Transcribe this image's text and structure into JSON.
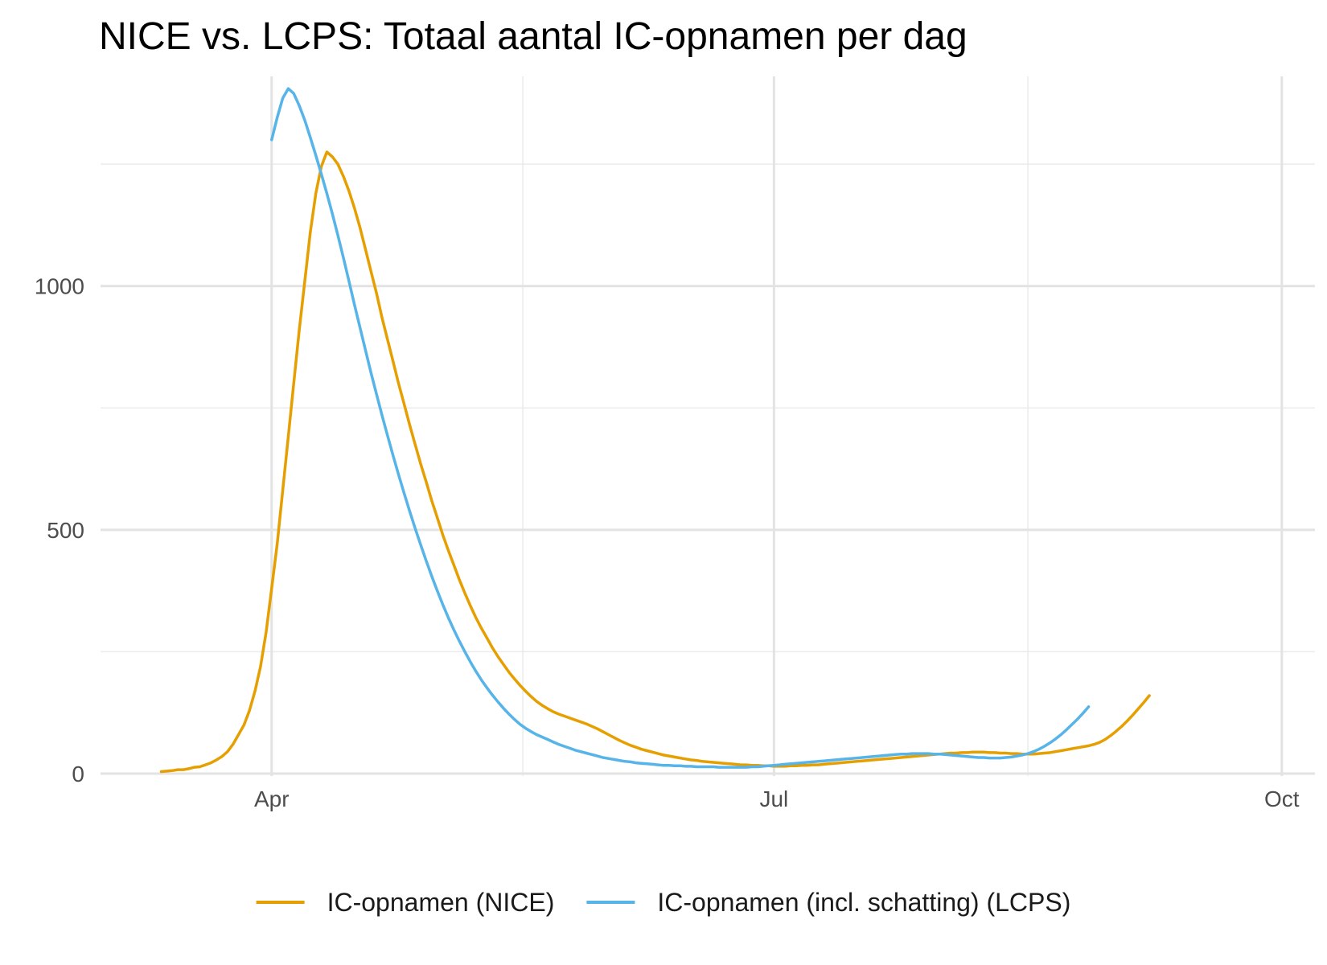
{
  "chart_data": {
    "type": "line",
    "title": "NICE vs. LCPS: Totaal aantal IC-opnamen per dag",
    "xlabel": "",
    "ylabel": "",
    "x_unit": "day of year 2020 (1 = 1 Jan)",
    "xlim": [
      61,
      281
    ],
    "ylim": [
      -5,
      1430
    ],
    "grid": true,
    "legend_position": "bottom",
    "x_ticks": [
      {
        "label": "Apr",
        "value": 92
      },
      {
        "label": "Jul",
        "value": 183
      },
      {
        "label": "Oct",
        "value": 275
      }
    ],
    "y_ticks": [
      {
        "label": "0",
        "value": 0
      },
      {
        "label": "500",
        "value": 500
      },
      {
        "label": "1000",
        "value": 1000
      }
    ],
    "series": [
      {
        "name": "IC-opnamen (NICE)",
        "color": "#E69F00",
        "points": [
          [
            72,
            4
          ],
          [
            73,
            5
          ],
          [
            74,
            6
          ],
          [
            75,
            8
          ],
          [
            76,
            8
          ],
          [
            77,
            10
          ],
          [
            78,
            13
          ],
          [
            79,
            14
          ],
          [
            80,
            18
          ],
          [
            81,
            22
          ],
          [
            82,
            28
          ],
          [
            83,
            35
          ],
          [
            84,
            45
          ],
          [
            85,
            60
          ],
          [
            86,
            80
          ],
          [
            87,
            100
          ],
          [
            88,
            130
          ],
          [
            89,
            170
          ],
          [
            90,
            220
          ],
          [
            91,
            290
          ],
          [
            92,
            380
          ],
          [
            93,
            470
          ],
          [
            94,
            580
          ],
          [
            95,
            690
          ],
          [
            96,
            800
          ],
          [
            97,
            910
          ],
          [
            98,
            1010
          ],
          [
            99,
            1110
          ],
          [
            100,
            1190
          ],
          [
            101,
            1245
          ],
          [
            102,
            1275
          ],
          [
            103,
            1265
          ],
          [
            104,
            1250
          ],
          [
            105,
            1225
          ],
          [
            106,
            1195
          ],
          [
            107,
            1160
          ],
          [
            108,
            1120
          ],
          [
            109,
            1075
          ],
          [
            110,
            1030
          ],
          [
            111,
            985
          ],
          [
            112,
            935
          ],
          [
            113,
            890
          ],
          [
            114,
            845
          ],
          [
            115,
            800
          ],
          [
            116,
            758
          ],
          [
            117,
            715
          ],
          [
            118,
            675
          ],
          [
            119,
            635
          ],
          [
            120,
            598
          ],
          [
            121,
            560
          ],
          [
            122,
            525
          ],
          [
            123,
            490
          ],
          [
            124,
            458
          ],
          [
            125,
            428
          ],
          [
            126,
            398
          ],
          [
            127,
            370
          ],
          [
            128,
            344
          ],
          [
            129,
            320
          ],
          [
            130,
            298
          ],
          [
            131,
            278
          ],
          [
            132,
            258
          ],
          [
            133,
            240
          ],
          [
            134,
            224
          ],
          [
            135,
            208
          ],
          [
            136,
            194
          ],
          [
            137,
            181
          ],
          [
            138,
            169
          ],
          [
            139,
            158
          ],
          [
            140,
            148
          ],
          [
            141,
            140
          ],
          [
            142,
            133
          ],
          [
            143,
            127
          ],
          [
            144,
            122
          ],
          [
            145,
            118
          ],
          [
            146,
            114
          ],
          [
            147,
            110
          ],
          [
            148,
            106
          ],
          [
            149,
            102
          ],
          [
            150,
            97
          ],
          [
            151,
            92
          ],
          [
            152,
            86
          ],
          [
            153,
            80
          ],
          [
            154,
            74
          ],
          [
            155,
            68
          ],
          [
            156,
            63
          ],
          [
            157,
            58
          ],
          [
            158,
            54
          ],
          [
            159,
            50
          ],
          [
            160,
            47
          ],
          [
            161,
            44
          ],
          [
            162,
            41
          ],
          [
            163,
            38
          ],
          [
            164,
            36
          ],
          [
            165,
            34
          ],
          [
            166,
            32
          ],
          [
            167,
            30
          ],
          [
            168,
            28
          ],
          [
            169,
            27
          ],
          [
            170,
            25
          ],
          [
            171,
            24
          ],
          [
            172,
            23
          ],
          [
            173,
            22
          ],
          [
            174,
            21
          ],
          [
            175,
            20
          ],
          [
            176,
            19
          ],
          [
            177,
            18
          ],
          [
            178,
            18
          ],
          [
            179,
            17
          ],
          [
            180,
            17
          ],
          [
            181,
            16
          ],
          [
            182,
            16
          ],
          [
            183,
            15
          ],
          [
            184,
            15
          ],
          [
            185,
            15
          ],
          [
            186,
            16
          ],
          [
            187,
            16
          ],
          [
            188,
            17
          ],
          [
            189,
            17
          ],
          [
            190,
            18
          ],
          [
            191,
            18
          ],
          [
            192,
            19
          ],
          [
            193,
            20
          ],
          [
            194,
            21
          ],
          [
            195,
            22
          ],
          [
            196,
            23
          ],
          [
            197,
            24
          ],
          [
            198,
            25
          ],
          [
            199,
            26
          ],
          [
            200,
            27
          ],
          [
            201,
            28
          ],
          [
            202,
            29
          ],
          [
            203,
            30
          ],
          [
            204,
            31
          ],
          [
            205,
            32
          ],
          [
            206,
            33
          ],
          [
            207,
            34
          ],
          [
            208,
            35
          ],
          [
            209,
            36
          ],
          [
            210,
            37
          ],
          [
            211,
            38
          ],
          [
            212,
            39
          ],
          [
            213,
            40
          ],
          [
            214,
            41
          ],
          [
            215,
            42
          ],
          [
            216,
            42
          ],
          [
            217,
            43
          ],
          [
            218,
            43
          ],
          [
            219,
            44
          ],
          [
            220,
            44
          ],
          [
            221,
            44
          ],
          [
            222,
            43
          ],
          [
            223,
            43
          ],
          [
            224,
            42
          ],
          [
            225,
            42
          ],
          [
            226,
            41
          ],
          [
            227,
            41
          ],
          [
            228,
            40
          ],
          [
            229,
            40
          ],
          [
            230,
            40
          ],
          [
            231,
            41
          ],
          [
            232,
            42
          ],
          [
            233,
            43
          ],
          [
            234,
            45
          ],
          [
            235,
            47
          ],
          [
            236,
            49
          ],
          [
            237,
            51
          ],
          [
            238,
            53
          ],
          [
            239,
            55
          ],
          [
            240,
            57
          ],
          [
            241,
            60
          ],
          [
            242,
            64
          ],
          [
            243,
            70
          ],
          [
            244,
            78
          ],
          [
            245,
            87
          ],
          [
            246,
            97
          ],
          [
            247,
            108
          ],
          [
            248,
            120
          ],
          [
            249,
            133
          ],
          [
            250,
            146
          ],
          [
            251,
            160
          ]
        ]
      },
      {
        "name": "IC-opnamen (incl. schatting) (LCPS)",
        "color": "#56B4E9",
        "points": [
          [
            92,
            1300
          ],
          [
            93,
            1345
          ],
          [
            94,
            1385
          ],
          [
            95,
            1405
          ],
          [
            96,
            1395
          ],
          [
            97,
            1370
          ],
          [
            98,
            1340
          ],
          [
            99,
            1305
          ],
          [
            100,
            1268
          ],
          [
            101,
            1230
          ],
          [
            102,
            1190
          ],
          [
            103,
            1148
          ],
          [
            104,
            1104
          ],
          [
            105,
            1058
          ],
          [
            106,
            1010
          ],
          [
            107,
            962
          ],
          [
            108,
            915
          ],
          [
            109,
            868
          ],
          [
            110,
            822
          ],
          [
            111,
            778
          ],
          [
            112,
            735
          ],
          [
            113,
            693
          ],
          [
            114,
            652
          ],
          [
            115,
            613
          ],
          [
            116,
            575
          ],
          [
            117,
            538
          ],
          [
            118,
            503
          ],
          [
            119,
            469
          ],
          [
            120,
            436
          ],
          [
            121,
            405
          ],
          [
            122,
            375
          ],
          [
            123,
            347
          ],
          [
            124,
            320
          ],
          [
            125,
            295
          ],
          [
            126,
            272
          ],
          [
            127,
            250
          ],
          [
            128,
            229
          ],
          [
            129,
            210
          ],
          [
            130,
            192
          ],
          [
            131,
            176
          ],
          [
            132,
            161
          ],
          [
            133,
            147
          ],
          [
            134,
            134
          ],
          [
            135,
            122
          ],
          [
            136,
            111
          ],
          [
            137,
            101
          ],
          [
            138,
            93
          ],
          [
            139,
            86
          ],
          [
            140,
            80
          ],
          [
            141,
            75
          ],
          [
            142,
            70
          ],
          [
            143,
            65
          ],
          [
            144,
            60
          ],
          [
            145,
            56
          ],
          [
            146,
            52
          ],
          [
            147,
            48
          ],
          [
            148,
            45
          ],
          [
            149,
            42
          ],
          [
            150,
            39
          ],
          [
            151,
            36
          ],
          [
            152,
            33
          ],
          [
            153,
            31
          ],
          [
            154,
            29
          ],
          [
            155,
            27
          ],
          [
            156,
            25
          ],
          [
            157,
            24
          ],
          [
            158,
            22
          ],
          [
            159,
            21
          ],
          [
            160,
            20
          ],
          [
            161,
            19
          ],
          [
            162,
            18
          ],
          [
            163,
            17
          ],
          [
            164,
            17
          ],
          [
            165,
            16
          ],
          [
            166,
            16
          ],
          [
            167,
            15
          ],
          [
            168,
            15
          ],
          [
            169,
            14
          ],
          [
            170,
            14
          ],
          [
            171,
            14
          ],
          [
            172,
            14
          ],
          [
            173,
            13
          ],
          [
            174,
            13
          ],
          [
            175,
            13
          ],
          [
            176,
            13
          ],
          [
            177,
            13
          ],
          [
            178,
            13
          ],
          [
            179,
            14
          ],
          [
            180,
            14
          ],
          [
            181,
            15
          ],
          [
            182,
            16
          ],
          [
            183,
            17
          ],
          [
            184,
            18
          ],
          [
            185,
            19
          ],
          [
            186,
            20
          ],
          [
            187,
            21
          ],
          [
            188,
            22
          ],
          [
            189,
            23
          ],
          [
            190,
            24
          ],
          [
            191,
            25
          ],
          [
            192,
            26
          ],
          [
            193,
            27
          ],
          [
            194,
            28
          ],
          [
            195,
            29
          ],
          [
            196,
            30
          ],
          [
            197,
            31
          ],
          [
            198,
            32
          ],
          [
            199,
            33
          ],
          [
            200,
            34
          ],
          [
            201,
            35
          ],
          [
            202,
            36
          ],
          [
            203,
            37
          ],
          [
            204,
            38
          ],
          [
            205,
            39
          ],
          [
            206,
            40
          ],
          [
            207,
            40
          ],
          [
            208,
            41
          ],
          [
            209,
            41
          ],
          [
            210,
            41
          ],
          [
            211,
            41
          ],
          [
            212,
            40
          ],
          [
            213,
            40
          ],
          [
            214,
            39
          ],
          [
            215,
            38
          ],
          [
            216,
            37
          ],
          [
            217,
            36
          ],
          [
            218,
            35
          ],
          [
            219,
            34
          ],
          [
            220,
            33
          ],
          [
            221,
            33
          ],
          [
            222,
            32
          ],
          [
            223,
            32
          ],
          [
            224,
            32
          ],
          [
            225,
            33
          ],
          [
            226,
            34
          ],
          [
            227,
            36
          ],
          [
            228,
            38
          ],
          [
            229,
            41
          ],
          [
            230,
            45
          ],
          [
            231,
            50
          ],
          [
            232,
            56
          ],
          [
            233,
            63
          ],
          [
            234,
            71
          ],
          [
            235,
            80
          ],
          [
            236,
            90
          ],
          [
            237,
            101
          ],
          [
            238,
            112
          ],
          [
            239,
            124
          ],
          [
            240,
            137
          ]
        ]
      }
    ]
  }
}
